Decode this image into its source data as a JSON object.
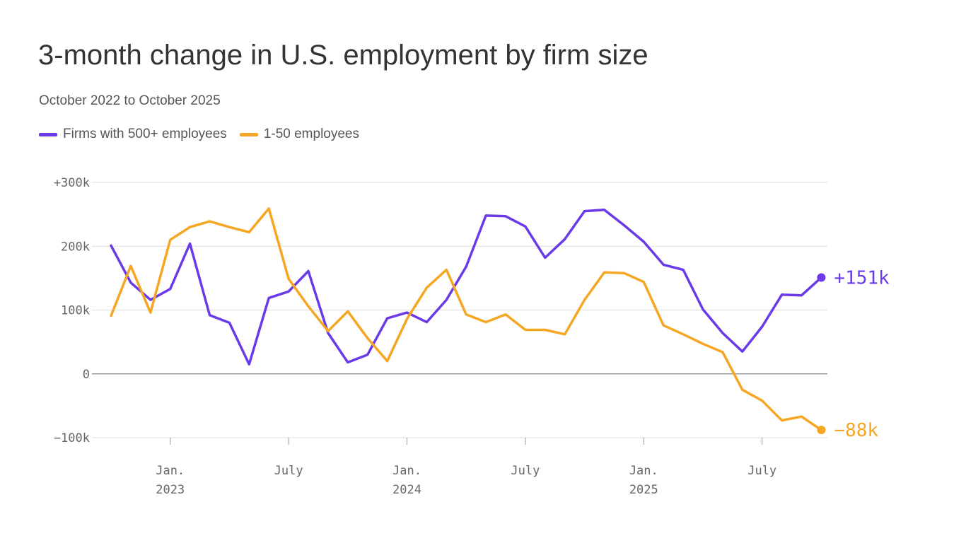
{
  "header": {
    "title": "3-month change in U.S. employment by firm size",
    "subtitle": "October 2022 to October 2025"
  },
  "legend": [
    {
      "label": "Firms with 500+ employees",
      "color": "#6a3ae8"
    },
    {
      "label": "1-50 employees",
      "color": "#f5a623"
    }
  ],
  "chart_data": {
    "type": "line",
    "title": "3-month change in U.S. employment by firm size",
    "subtitle": "October 2022 to October 2025",
    "xlabel": "",
    "ylabel": "",
    "ylim": [
      -100000,
      300000
    ],
    "grid": true,
    "legend_position": "top-left",
    "y_ticks": [
      {
        "value": 300000,
        "label": "+300k"
      },
      {
        "value": 200000,
        "label": "200k"
      },
      {
        "value": 100000,
        "label": "100k"
      },
      {
        "value": 0,
        "label": "0"
      },
      {
        "value": -100000,
        "label": "−100k"
      }
    ],
    "x_ticks": [
      {
        "date": "2023-01",
        "label": "Jan.",
        "sublabel": "2023"
      },
      {
        "date": "2023-07",
        "label": "July",
        "sublabel": ""
      },
      {
        "date": "2024-01",
        "label": "Jan.",
        "sublabel": "2024"
      },
      {
        "date": "2024-07",
        "label": "July",
        "sublabel": ""
      },
      {
        "date": "2025-01",
        "label": "Jan.",
        "sublabel": "2025"
      },
      {
        "date": "2025-07",
        "label": "July",
        "sublabel": ""
      }
    ],
    "x": [
      "2022-10",
      "2022-11",
      "2022-12",
      "2023-01",
      "2023-02",
      "2023-03",
      "2023-04",
      "2023-05",
      "2023-06",
      "2023-07",
      "2023-08",
      "2023-09",
      "2023-10",
      "2023-11",
      "2023-12",
      "2024-01",
      "2024-02",
      "2024-03",
      "2024-04",
      "2024-05",
      "2024-06",
      "2024-07",
      "2024-08",
      "2024-09",
      "2024-10",
      "2024-11",
      "2024-12",
      "2025-01",
      "2025-02",
      "2025-03",
      "2025-04",
      "2025-05",
      "2025-06",
      "2025-07",
      "2025-08",
      "2025-09",
      "2025-10"
    ],
    "series": [
      {
        "name": "Firms with 500+ employees",
        "color": "#6a3ae8",
        "end_label": "+151k",
        "values": [
          201000,
          143000,
          116000,
          133000,
          204000,
          92000,
          80000,
          15000,
          119000,
          129000,
          161000,
          64000,
          18000,
          30000,
          87000,
          96000,
          81000,
          116000,
          168000,
          248000,
          247000,
          231000,
          182000,
          211000,
          255000,
          257000,
          233000,
          207000,
          171000,
          163000,
          101000,
          64000,
          35000,
          74000,
          124000,
          123000,
          151000
        ]
      },
      {
        "name": "1-50 employees",
        "color": "#f5a623",
        "end_label": "−88k",
        "values": [
          91000,
          169000,
          96000,
          210000,
          230000,
          239000,
          230000,
          222000,
          259000,
          149000,
          106000,
          67000,
          98000,
          56000,
          20000,
          86000,
          135000,
          163000,
          93000,
          81000,
          93000,
          69000,
          69000,
          62000,
          116000,
          159000,
          158000,
          144000,
          76000,
          62000,
          47000,
          34000,
          -25000,
          -42000,
          -73000,
          -67000,
          -88000
        ]
      }
    ]
  }
}
